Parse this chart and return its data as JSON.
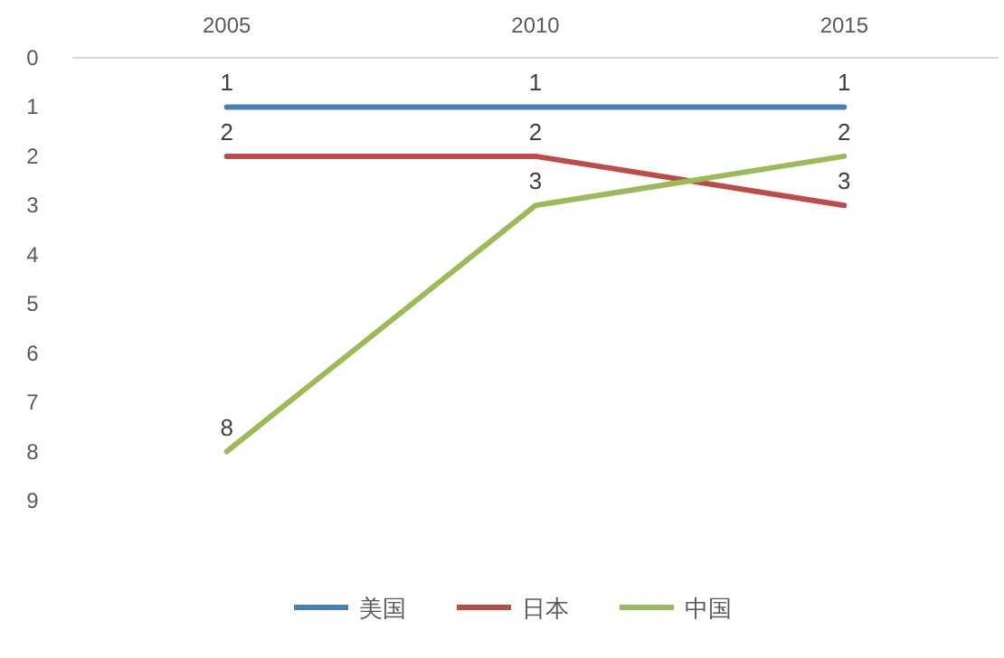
{
  "chart_data": {
    "type": "line",
    "categories": [
      "2005",
      "2010",
      "2015"
    ],
    "series": [
      {
        "name": "美国",
        "color": "#4a7ebb",
        "values": [
          1,
          1,
          1
        ]
      },
      {
        "name": "日本",
        "color": "#be4b48",
        "values": [
          2,
          2,
          3
        ]
      },
      {
        "name": "中国",
        "color": "#9bbb59",
        "values": [
          8,
          3,
          2
        ]
      }
    ],
    "ylim": [
      9,
      0
    ],
    "yticks": [
      0,
      1,
      2,
      3,
      4,
      5,
      6,
      7,
      8,
      9
    ],
    "data_labels": true,
    "legend": "bottom",
    "grid": false,
    "marker": "none",
    "line_style": "solid"
  }
}
